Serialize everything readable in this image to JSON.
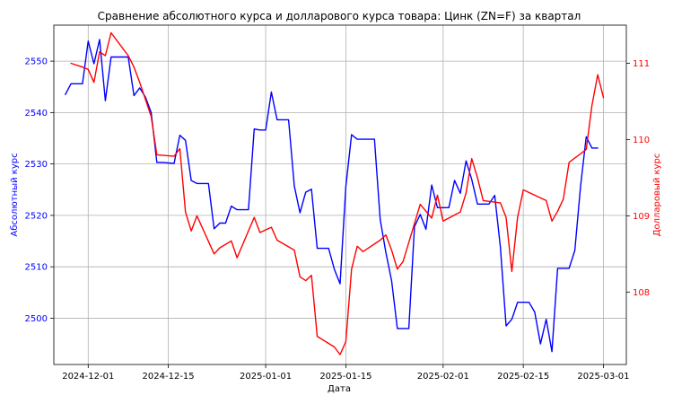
{
  "chart_data": {
    "type": "line",
    "title": "Сравнение абсолютного курса и долларового курса товара: Цинк (ZN=F) за квартал",
    "xlabel": "Дата",
    "ylabel_left": "Абсолютный курс",
    "ylabel_right": "Долларовый курс",
    "grid": true,
    "x_range": [
      "2024-11-25",
      "2025-03-05"
    ],
    "x_ticks": [
      "2024-12-01",
      "2024-12-15",
      "2025-01-01",
      "2025-01-15",
      "2025-02-01",
      "2025-02-15",
      "2025-03-01"
    ],
    "y_left_range": [
      2491,
      2557
    ],
    "y_left_ticks": [
      2500,
      2510,
      2520,
      2530,
      2540,
      2550
    ],
    "y_right_range": [
      107.05,
      111.5
    ],
    "y_right_ticks": [
      108,
      109,
      110,
      111
    ],
    "colors": {
      "absolute": "#0000ff",
      "dollar": "#ff0000"
    },
    "series": [
      {
        "name": "",
        "axis": "left",
        "color": "#0000ff",
        "points": [
          [
            "2024-11-27",
            2543.5
          ],
          [
            "2024-11-28",
            2545.6
          ],
          [
            "2024-11-29",
            2545.6
          ],
          [
            "2024-11-30",
            2545.6
          ],
          [
            "2024-12-01",
            2553.9
          ],
          [
            "2024-12-02",
            2549.5
          ],
          [
            "2024-12-03",
            2554.2
          ],
          [
            "2024-12-04",
            2542.3
          ],
          [
            "2024-12-05",
            2550.8
          ],
          [
            "2024-12-06",
            2550.8
          ],
          [
            "2024-12-08",
            2550.8
          ],
          [
            "2024-12-09",
            2543.3
          ],
          [
            "2024-12-10",
            2544.8
          ],
          [
            "2024-12-11",
            2543.0
          ],
          [
            "2024-12-12",
            2540.0
          ],
          [
            "2024-12-13",
            2530.3
          ],
          [
            "2024-12-14",
            2530.3
          ],
          [
            "2024-12-16",
            2530.1
          ],
          [
            "2024-12-17",
            2535.6
          ],
          [
            "2024-12-18",
            2534.6
          ],
          [
            "2024-12-19",
            2526.8
          ],
          [
            "2024-12-20",
            2526.2
          ],
          [
            "2024-12-22",
            2526.2
          ],
          [
            "2024-12-23",
            2517.4
          ],
          [
            "2024-12-24",
            2518.5
          ],
          [
            "2024-12-25",
            2518.5
          ],
          [
            "2024-12-26",
            2521.8
          ],
          [
            "2024-12-27",
            2521.1
          ],
          [
            "2024-12-29",
            2521.1
          ],
          [
            "2024-12-30",
            2536.8
          ],
          [
            "2024-12-31",
            2536.6
          ],
          [
            "2025-01-01",
            2536.6
          ],
          [
            "2025-01-02",
            2544.0
          ],
          [
            "2025-01-03",
            2538.6
          ],
          [
            "2025-01-05",
            2538.6
          ],
          [
            "2025-01-06",
            2525.7
          ],
          [
            "2025-01-07",
            2520.5
          ],
          [
            "2025-01-08",
            2524.5
          ],
          [
            "2025-01-09",
            2525.1
          ],
          [
            "2025-01-10",
            2513.6
          ],
          [
            "2025-01-12",
            2513.6
          ],
          [
            "2025-01-13",
            2509.5
          ],
          [
            "2025-01-14",
            2506.7
          ],
          [
            "2025-01-15",
            2525.6
          ],
          [
            "2025-01-16",
            2535.7
          ],
          [
            "2025-01-17",
            2534.8
          ],
          [
            "2025-01-20",
            2534.8
          ],
          [
            "2025-01-21",
            2519.2
          ],
          [
            "2025-01-22",
            2512.8
          ],
          [
            "2025-01-23",
            2507.3
          ],
          [
            "2025-01-24",
            2498.0
          ],
          [
            "2025-01-26",
            2498.0
          ],
          [
            "2025-01-27",
            2517.8
          ],
          [
            "2025-01-28",
            2520.2
          ],
          [
            "2025-01-29",
            2517.3
          ],
          [
            "2025-01-30",
            2525.9
          ],
          [
            "2025-01-31",
            2521.5
          ],
          [
            "2025-02-02",
            2521.5
          ],
          [
            "2025-02-03",
            2526.8
          ],
          [
            "2025-02-04",
            2524.3
          ],
          [
            "2025-02-05",
            2530.6
          ],
          [
            "2025-02-06",
            2527.0
          ],
          [
            "2025-02-07",
            2522.2
          ],
          [
            "2025-02-09",
            2522.2
          ],
          [
            "2025-02-10",
            2523.9
          ],
          [
            "2025-02-11",
            2513.9
          ],
          [
            "2025-02-12",
            2498.5
          ],
          [
            "2025-02-13",
            2499.8
          ],
          [
            "2025-02-14",
            2503.1
          ],
          [
            "2025-02-16",
            2503.1
          ],
          [
            "2025-02-17",
            2501.2
          ],
          [
            "2025-02-18",
            2495.0
          ],
          [
            "2025-02-19",
            2499.8
          ],
          [
            "2025-02-20",
            2493.5
          ],
          [
            "2025-02-21",
            2509.7
          ],
          [
            "2025-02-23",
            2509.7
          ],
          [
            "2025-02-24",
            2513.2
          ],
          [
            "2025-02-25",
            2525.7
          ],
          [
            "2025-02-26",
            2535.3
          ],
          [
            "2025-02-27",
            2533.1
          ],
          [
            "2025-02-28",
            2533.1
          ]
        ]
      },
      {
        "name": "",
        "axis": "right",
        "color": "#ff0000",
        "points": [
          [
            "2024-11-28",
            111.0
          ],
          [
            "2024-11-30",
            110.95
          ],
          [
            "2024-12-01",
            110.92
          ],
          [
            "2024-12-02",
            110.75
          ],
          [
            "2024-12-03",
            111.15
          ],
          [
            "2024-12-04",
            111.1
          ],
          [
            "2024-12-05",
            111.4
          ],
          [
            "2024-12-08",
            111.1
          ],
          [
            "2024-12-09",
            110.95
          ],
          [
            "2024-12-10",
            110.75
          ],
          [
            "2024-12-12",
            110.3
          ],
          [
            "2024-12-13",
            109.8
          ],
          [
            "2024-12-16",
            109.78
          ],
          [
            "2024-12-17",
            109.88
          ],
          [
            "2024-12-18",
            109.05
          ],
          [
            "2024-12-19",
            108.8
          ],
          [
            "2024-12-20",
            109.0
          ],
          [
            "2024-12-23",
            108.5
          ],
          [
            "2024-12-24",
            108.58
          ],
          [
            "2024-12-26",
            108.67
          ],
          [
            "2024-12-27",
            108.45
          ],
          [
            "2024-12-30",
            108.98
          ],
          [
            "2024-12-31",
            108.78
          ],
          [
            "2025-01-02",
            108.85
          ],
          [
            "2025-01-03",
            108.68
          ],
          [
            "2025-01-06",
            108.55
          ],
          [
            "2025-01-07",
            108.2
          ],
          [
            "2025-01-08",
            108.15
          ],
          [
            "2025-01-09",
            108.22
          ],
          [
            "2025-01-10",
            107.42
          ],
          [
            "2025-01-13",
            107.28
          ],
          [
            "2025-01-14",
            107.18
          ],
          [
            "2025-01-15",
            107.35
          ],
          [
            "2025-01-16",
            108.3
          ],
          [
            "2025-01-17",
            108.6
          ],
          [
            "2025-01-18",
            108.53
          ],
          [
            "2025-01-21",
            108.68
          ],
          [
            "2025-01-22",
            108.75
          ],
          [
            "2025-01-23",
            108.55
          ],
          [
            "2025-01-24",
            108.3
          ],
          [
            "2025-01-25",
            108.4
          ],
          [
            "2025-01-28",
            109.15
          ],
          [
            "2025-01-30",
            108.97
          ],
          [
            "2025-01-31",
            109.27
          ],
          [
            "2025-02-01",
            108.93
          ],
          [
            "2025-02-04",
            109.05
          ],
          [
            "2025-02-05",
            109.3
          ],
          [
            "2025-02-06",
            109.75
          ],
          [
            "2025-02-07",
            109.5
          ],
          [
            "2025-02-08",
            109.2
          ],
          [
            "2025-02-11",
            109.17
          ],
          [
            "2025-02-12",
            108.98
          ],
          [
            "2025-02-13",
            108.27
          ],
          [
            "2025-02-14",
            108.98
          ],
          [
            "2025-02-15",
            109.34
          ],
          [
            "2025-02-19",
            109.2
          ],
          [
            "2025-02-20",
            108.93
          ],
          [
            "2025-02-21",
            109.06
          ],
          [
            "2025-02-22",
            109.22
          ],
          [
            "2025-02-23",
            109.7
          ],
          [
            "2025-02-26",
            109.87
          ],
          [
            "2025-02-27",
            110.45
          ],
          [
            "2025-02-28",
            110.85
          ],
          [
            "2025-03-01",
            110.55
          ]
        ]
      }
    ]
  }
}
